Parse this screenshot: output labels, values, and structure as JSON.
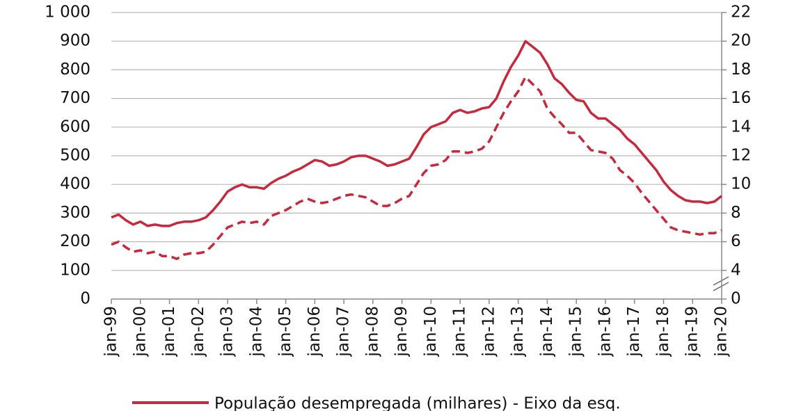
{
  "chart_data": {
    "type": "line",
    "categories": [
      "jan-99",
      null,
      null,
      null,
      "jan-00",
      null,
      null,
      null,
      "jan-01",
      null,
      null,
      null,
      "jan-02",
      null,
      null,
      null,
      "jan-03",
      null,
      null,
      null,
      "jan-04",
      null,
      null,
      null,
      "jan-05",
      null,
      null,
      null,
      "jan-06",
      null,
      null,
      null,
      "jan-07",
      null,
      null,
      null,
      "jan-08",
      null,
      null,
      null,
      "jan-09",
      null,
      null,
      null,
      "jan-10",
      null,
      null,
      null,
      "jan-11",
      null,
      null,
      null,
      "jan-12",
      null,
      null,
      null,
      "jan-13",
      null,
      null,
      null,
      "jan-14",
      null,
      null,
      null,
      "jan-15",
      null,
      null,
      null,
      "jan-16",
      null,
      null,
      null,
      "jan-17",
      null,
      null,
      null,
      "jan-18",
      null,
      null,
      null,
      "jan-19",
      null,
      null,
      null,
      "jan-20"
    ],
    "series": [
      {
        "name": "População desempregada (milhares) - Eixo da esq.",
        "color": "#c8283c",
        "dashed": false,
        "values": [
          285,
          295,
          275,
          260,
          270,
          255,
          260,
          255,
          255,
          265,
          270,
          270,
          275,
          285,
          310,
          340,
          375,
          390,
          400,
          390,
          390,
          385,
          405,
          420,
          430,
          445,
          455,
          470,
          485,
          480,
          465,
          470,
          480,
          495,
          500,
          500,
          490,
          480,
          465,
          470,
          480,
          490,
          530,
          575,
          600,
          610,
          620,
          650,
          660,
          650,
          655,
          665,
          670,
          700,
          760,
          810,
          850,
          900,
          880,
          860,
          820,
          770,
          750,
          720,
          695,
          690,
          650,
          630,
          630,
          610,
          590,
          560,
          540,
          510,
          480,
          450,
          410,
          380,
          360,
          345,
          340,
          340,
          335,
          340,
          360
        ]
      },
      {
        "color": "#c8283c",
        "dashed": true,
        "axis": "y2",
        "values": [
          5.8,
          6.0,
          5.6,
          5.3,
          5.4,
          5.2,
          5.3,
          5.0,
          5.0,
          4.8,
          5.1,
          5.2,
          5.2,
          5.3,
          5.8,
          6.4,
          7.0,
          7.2,
          7.4,
          7.3,
          7.4,
          7.2,
          7.8,
          8.0,
          8.2,
          8.5,
          8.8,
          9.0,
          8.8,
          8.7,
          8.8,
          9.0,
          9.2,
          9.3,
          9.2,
          9.1,
          8.8,
          8.5,
          8.5,
          8.7,
          9.0,
          9.2,
          10.0,
          10.8,
          11.3,
          11.4,
          11.7,
          12.3,
          12.3,
          12.2,
          12.3,
          12.5,
          13.0,
          14.0,
          15.0,
          15.8,
          16.5,
          17.5,
          17.0,
          16.5,
          15.3,
          14.7,
          14.2,
          13.6,
          13.6,
          13.0,
          12.4,
          12.3,
          12.2,
          11.8,
          11.0,
          10.6,
          10.1,
          9.4,
          8.8,
          8.2,
          7.6,
          7.0,
          6.8,
          6.7,
          6.6,
          6.5,
          6.6,
          6.6,
          6.8
        ]
      }
    ],
    "ylim": [
      0,
      1000
    ],
    "yticks": [
      0,
      100,
      200,
      300,
      400,
      500,
      600,
      700,
      800,
      900,
      {
        "value": 1000,
        "label": "1 000"
      }
    ],
    "y2lim": [
      0,
      22
    ],
    "y2ticks": [
      0,
      4,
      6,
      8,
      10,
      12,
      14,
      16,
      18,
      20,
      22
    ],
    "y2_break": [
      0,
      4
    ],
    "grid": true
  }
}
